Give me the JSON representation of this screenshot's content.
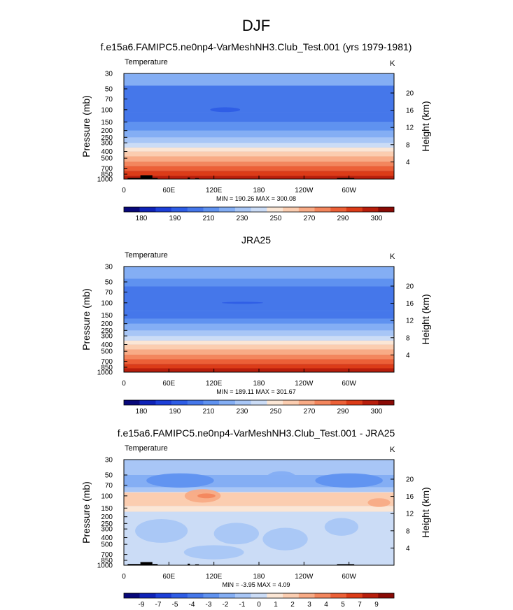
{
  "figure": {
    "title": "DJF"
  },
  "palettes": {
    "abs": [
      "#08087a",
      "#0f23b8",
      "#1d3fd8",
      "#2e5de6",
      "#4577ea",
      "#5f92f0",
      "#84aef4",
      "#a8c6f6",
      "#cbdcf6",
      "#fbe6d5",
      "#fbcdb0",
      "#f8ab86",
      "#f3865d",
      "#ec6037",
      "#dc3c18",
      "#b81e0c",
      "#8a0a05"
    ],
    "diff": [
      "#08087a",
      "#0f23b8",
      "#1d3fd8",
      "#2e5de6",
      "#4577ea",
      "#5f92f0",
      "#84aef4",
      "#a8c6f6",
      "#cbdcf6",
      "#fbe6d5",
      "#fbcdb0",
      "#f8ab86",
      "#f3865d",
      "#ec6037",
      "#dc3c18",
      "#b81e0c",
      "#8a0a05"
    ]
  },
  "chart_data": [
    {
      "type": "heatmap",
      "panel_id": "model",
      "title": "f.e15a6.FAMIPC5.ne0np4-VarMeshNH3.Club_Test.001 (yrs 1979-1981)",
      "left_label": "Temperature",
      "units": "K",
      "ylabel": "Pressure (mb)",
      "ylabel_right": "Height (km)",
      "x_ticks": [
        "0",
        "60E",
        "120E",
        "180",
        "120W",
        "60W"
      ],
      "x_tick_values": [
        0,
        60,
        120,
        180,
        240,
        300
      ],
      "xlim": [
        0,
        360
      ],
      "y_ticks": [
        "30",
        "50",
        "70",
        "100",
        "150",
        "200",
        "250",
        "300",
        "400",
        "500",
        "700",
        "850",
        "1000"
      ],
      "y_tick_values": [
        30,
        50,
        70,
        100,
        150,
        200,
        250,
        300,
        400,
        500,
        700,
        850,
        1000
      ],
      "ylim": [
        30,
        1000
      ],
      "height_ticks": [
        "20",
        "16",
        "12",
        "8",
        "4"
      ],
      "height_tick_values": [
        20,
        16,
        12,
        8,
        4
      ],
      "stats": "MIN = 190.26  MAX = 300.08",
      "min": 190.26,
      "max": 300.08,
      "colorbar_labels": [
        "180",
        "190",
        "210",
        "230",
        "250",
        "270",
        "290",
        "300"
      ],
      "palette": "abs",
      "layers": [
        {
          "p": 30,
          "bin": 6
        },
        {
          "p": 45,
          "bin": 4
        },
        {
          "p": 110,
          "bin": 4
        },
        {
          "p": 150,
          "bin": 5
        },
        {
          "p": 200,
          "bin": 6
        },
        {
          "p": 250,
          "bin": 7
        },
        {
          "p": 300,
          "bin": 8
        },
        {
          "p": 350,
          "bin": 9
        },
        {
          "p": 400,
          "bin": 10
        },
        {
          "p": 470,
          "bin": 11
        },
        {
          "p": 560,
          "bin": 12
        },
        {
          "p": 650,
          "bin": 13
        },
        {
          "p": 760,
          "bin": 14
        },
        {
          "p": 900,
          "bin": 15
        },
        {
          "p": 1000,
          "bin": 15
        }
      ],
      "features": [
        {
          "lon": 135,
          "p": 100,
          "w": 40,
          "hp": 8,
          "bin": 3
        }
      ],
      "terrain": [
        {
          "lon0": 5,
          "lon1": 22,
          "ptop": 960
        },
        {
          "lon0": 22,
          "lon1": 38,
          "ptop": 880
        },
        {
          "lon0": 38,
          "lon1": 45,
          "ptop": 960
        },
        {
          "lon0": 85,
          "lon1": 88,
          "ptop": 950
        },
        {
          "lon0": 95,
          "lon1": 100,
          "ptop": 970
        },
        {
          "lon0": 284,
          "lon1": 307,
          "ptop": 965
        }
      ]
    },
    {
      "type": "heatmap",
      "panel_id": "obs",
      "title": "JRA25",
      "left_label": "Temperature",
      "units": "K",
      "ylabel": "Pressure (mb)",
      "ylabel_right": "Height (km)",
      "x_ticks": [
        "0",
        "60E",
        "120E",
        "180",
        "120W",
        "60W"
      ],
      "x_tick_values": [
        0,
        60,
        120,
        180,
        240,
        300
      ],
      "xlim": [
        0,
        360
      ],
      "y_ticks": [
        "30",
        "50",
        "70",
        "100",
        "150",
        "200",
        "250",
        "300",
        "400",
        "500",
        "700",
        "850",
        "1000"
      ],
      "y_tick_values": [
        30,
        50,
        70,
        100,
        150,
        200,
        250,
        300,
        400,
        500,
        700,
        850,
        1000
      ],
      "ylim": [
        30,
        1000
      ],
      "height_ticks": [
        "20",
        "16",
        "12",
        "8",
        "4"
      ],
      "height_tick_values": [
        20,
        16,
        12,
        8,
        4
      ],
      "stats": "MIN = 189.11  MAX = 301.67",
      "min": 189.11,
      "max": 301.67,
      "colorbar_labels": [
        "180",
        "190",
        "210",
        "230",
        "250",
        "270",
        "290",
        "300"
      ],
      "palette": "abs",
      "layers": [
        {
          "p": 30,
          "bin": 6
        },
        {
          "p": 45,
          "bin": 5
        },
        {
          "p": 58,
          "bin": 4
        },
        {
          "p": 130,
          "bin": 4
        },
        {
          "p": 170,
          "bin": 5
        },
        {
          "p": 200,
          "bin": 6
        },
        {
          "p": 250,
          "bin": 7
        },
        {
          "p": 300,
          "bin": 8
        },
        {
          "p": 350,
          "bin": 9
        },
        {
          "p": 400,
          "bin": 10
        },
        {
          "p": 470,
          "bin": 11
        },
        {
          "p": 560,
          "bin": 12
        },
        {
          "p": 650,
          "bin": 13
        },
        {
          "p": 760,
          "bin": 14
        },
        {
          "p": 880,
          "bin": 15
        },
        {
          "p": 1000,
          "bin": 15
        }
      ],
      "features": [
        {
          "lon": 158,
          "p": 100,
          "w": 55,
          "hp": 3,
          "bin": 3
        }
      ],
      "terrain": []
    },
    {
      "type": "heatmap",
      "panel_id": "diff",
      "title": "f.e15a6.FAMIPC5.ne0np4-VarMeshNH3.Club_Test.001 - JRA25",
      "left_label": "Temperature",
      "units": "K",
      "ylabel": "Pressure (mb)",
      "ylabel_right": "Height (km)",
      "x_ticks": [
        "0",
        "60E",
        "120E",
        "180",
        "120W",
        "60W"
      ],
      "x_tick_values": [
        0,
        60,
        120,
        180,
        240,
        300
      ],
      "xlim": [
        0,
        360
      ],
      "y_ticks": [
        "30",
        "50",
        "70",
        "100",
        "150",
        "200",
        "250",
        "300",
        "400",
        "500",
        "700",
        "850",
        "1000"
      ],
      "y_tick_values": [
        30,
        50,
        70,
        100,
        150,
        200,
        250,
        300,
        400,
        500,
        700,
        850,
        1000
      ],
      "ylim": [
        30,
        1000
      ],
      "height_ticks": [
        "20",
        "16",
        "12",
        "8",
        "4"
      ],
      "height_tick_values": [
        20,
        16,
        12,
        8,
        4
      ],
      "stats": "MIN = -3.95  MAX =  4.09",
      "min": -3.95,
      "max": 4.09,
      "colorbar_labels": [
        "-9",
        "-7",
        "-5",
        "-4",
        "-3",
        "-2",
        "-1",
        "0",
        "1",
        "2",
        "3",
        "4",
        "5",
        "7",
        "9"
      ],
      "palette": "diff",
      "layers": [
        {
          "p": 30,
          "bin": 7
        },
        {
          "p": 50,
          "bin": 6
        },
        {
          "p": 75,
          "bin": 7
        },
        {
          "p": 88,
          "bin": 9
        },
        {
          "p": 90,
          "bin": 10
        },
        {
          "p": 140,
          "bin": 9
        },
        {
          "p": 170,
          "bin": 8
        },
        {
          "p": 850,
          "bin": 8
        },
        {
          "p": 1000,
          "bin": 9
        }
      ],
      "features": [
        {
          "lon": 75,
          "p": 60,
          "w": 90,
          "hp": 14,
          "bin": 5
        },
        {
          "lon": 300,
          "p": 60,
          "w": 90,
          "hp": 14,
          "bin": 5
        },
        {
          "lon": 210,
          "p": 55,
          "w": 40,
          "hp": 12,
          "bin": 6
        },
        {
          "lon": 105,
          "p": 100,
          "w": 48,
          "hp": 22,
          "bin": 11
        },
        {
          "lon": 110,
          "p": 100,
          "w": 24,
          "hp": 8,
          "bin": 12
        },
        {
          "lon": 340,
          "p": 125,
          "w": 30,
          "hp": 18,
          "bin": 11
        },
        {
          "lon": 50,
          "p": 320,
          "w": 70,
          "hp": 120,
          "bin": 7
        },
        {
          "lon": 150,
          "p": 350,
          "w": 60,
          "hp": 120,
          "bin": 7
        },
        {
          "lon": 215,
          "p": 420,
          "w": 60,
          "hp": 150,
          "bin": 7
        },
        {
          "lon": 290,
          "p": 280,
          "w": 45,
          "hp": 80,
          "bin": 7
        },
        {
          "lon": 120,
          "p": 650,
          "w": 80,
          "hp": 150,
          "bin": 7
        }
      ],
      "terrain": [
        {
          "lon0": 5,
          "lon1": 22,
          "ptop": 960
        },
        {
          "lon0": 22,
          "lon1": 38,
          "ptop": 900
        },
        {
          "lon0": 38,
          "lon1": 45,
          "ptop": 960
        },
        {
          "lon0": 85,
          "lon1": 88,
          "ptop": 950
        },
        {
          "lon0": 95,
          "lon1": 100,
          "ptop": 970
        },
        {
          "lon0": 284,
          "lon1": 307,
          "ptop": 965
        }
      ]
    }
  ]
}
